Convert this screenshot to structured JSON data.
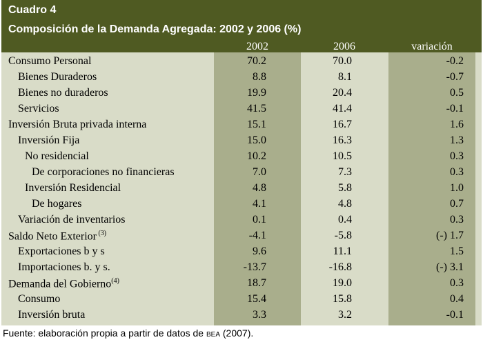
{
  "title": "Cuadro 4",
  "subtitle": "Composición de la Demanda Agregada: 2002 y 2006 (%)",
  "columns": [
    "2002",
    "2006",
    "variación"
  ],
  "rows": [
    {
      "label": "Consumo Personal",
      "indent": 0,
      "sup": "",
      "v2002": "70.2",
      "v2006": "70.0",
      "var": "-0.2"
    },
    {
      "label": "Bienes Duraderos",
      "indent": 1,
      "sup": "",
      "v2002": "8.8",
      "v2006": "8.1",
      "var": "-0.7"
    },
    {
      "label": "Bienes no duraderos",
      "indent": 1,
      "sup": "",
      "v2002": "19.9",
      "v2006": "20.4",
      "var": "0.5"
    },
    {
      "label": "Servicios",
      "indent": 1,
      "sup": "",
      "v2002": "41.5",
      "v2006": "41.4",
      "var": "-0.1"
    },
    {
      "label": "Inversión Bruta privada interna",
      "indent": 0,
      "sup": "",
      "v2002": "15.1",
      "v2006": "16.7",
      "var": "1.6"
    },
    {
      "label": "Inversión Fija",
      "indent": 1,
      "sup": "",
      "v2002": "15.0",
      "v2006": "16.3",
      "var": "1.3"
    },
    {
      "label": "No residencial",
      "indent": 2,
      "sup": "",
      "v2002": "10.2",
      "v2006": "10.5",
      "var": "0.3"
    },
    {
      "label": "De corporaciones no financieras",
      "indent": 3,
      "sup": "",
      "v2002": "7.0",
      "v2006": "7.3",
      "var": "0.3"
    },
    {
      "label": "Inversión Residencial",
      "indent": 2,
      "sup": "",
      "v2002": "4.8",
      "v2006": "5.8",
      "var": "1.0"
    },
    {
      "label": "De hogares",
      "indent": 3,
      "sup": "",
      "v2002": "4.1",
      "v2006": "4.8",
      "var": "0.7"
    },
    {
      "label": "Variación de inventarios",
      "indent": 1,
      "sup": "",
      "v2002": "0.1",
      "v2006": "0.4",
      "var": "0.3"
    },
    {
      "label": "Saldo Neto Exterior",
      "indent": 0,
      "sup": " (3)",
      "v2002": "-4.1",
      "v2006": "-5.8",
      "var": "(-) 1.7"
    },
    {
      "label": "Exportaciones b y s",
      "indent": 1,
      "sup": "",
      "v2002": "9.6",
      "v2006": "11.1",
      "var": "1.5"
    },
    {
      "label": "Importaciones b. y s.",
      "indent": 1,
      "sup": "",
      "v2002": "-13.7",
      "v2006": "-16.8",
      "var": "(-) 3.1"
    },
    {
      "label": "Demanda del Gobierno",
      "indent": 0,
      "sup": "(4)",
      "v2002": "18.7",
      "v2006": "19.0",
      "var": "0.3"
    },
    {
      "label": "Consumo",
      "indent": 1,
      "sup": "",
      "v2002": "15.4",
      "v2006": "15.8",
      "var": "0.4"
    },
    {
      "label": "Inversión bruta",
      "indent": 1,
      "sup": "",
      "v2002": "3.3",
      "v2006": "3.2",
      "var": "-0.1"
    }
  ],
  "footer": {
    "prefix": "Fuente: elaboración propia a partir de datos de",
    "source": "BEA",
    "suffix": "(2007)."
  },
  "colors": {
    "header_bg": "#4f5a22",
    "band": "#a9ae8c",
    "background": "#d9dcc8"
  }
}
